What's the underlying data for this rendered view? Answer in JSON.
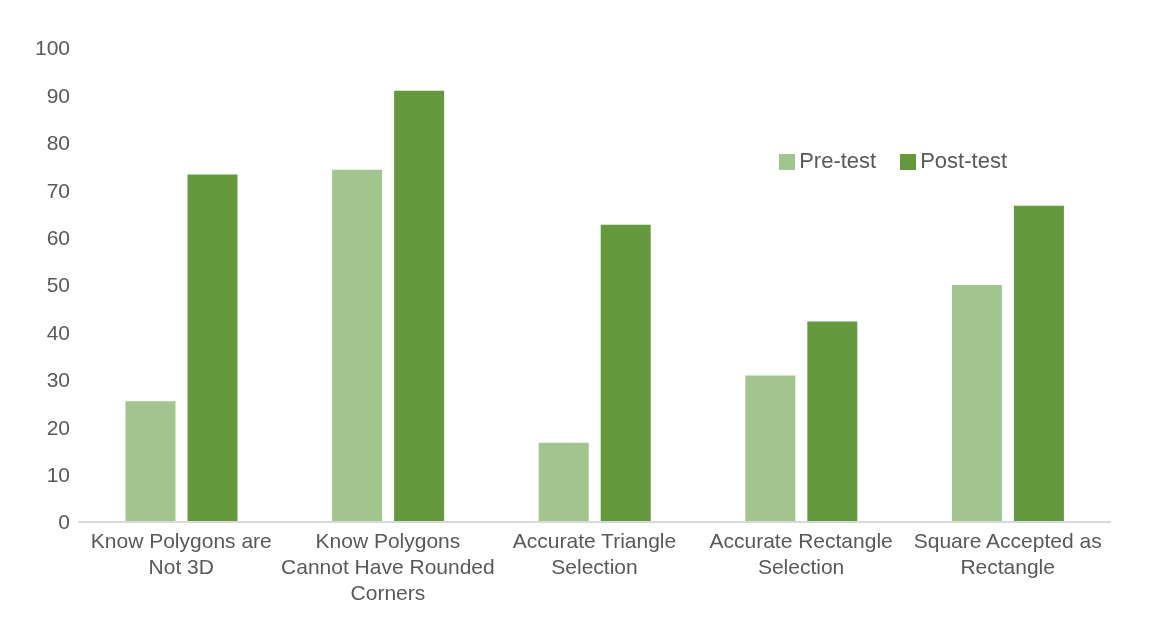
{
  "chart_data": {
    "type": "bar",
    "categories": [
      "Know Polygons are Not 3D",
      "Know Polygons Cannot Have Rounded Corners",
      "Accurate Triangle Selection",
      "Accurate Rectangle Selection",
      "Square Accepted as Rectangle"
    ],
    "series": [
      {
        "name": "Pre-test",
        "color": "#a2c58f",
        "values": [
          25.5,
          74.3,
          16.7,
          30.9,
          50
        ]
      },
      {
        "name": "Post-test",
        "color": "#64993e",
        "values": [
          73.3,
          91,
          62.7,
          42.3,
          66.7
        ]
      }
    ],
    "ylim": [
      0,
      100
    ],
    "yticks": [
      0,
      10,
      20,
      30,
      40,
      50,
      60,
      70,
      80,
      90,
      100
    ],
    "grid": false,
    "legend": "top right"
  }
}
